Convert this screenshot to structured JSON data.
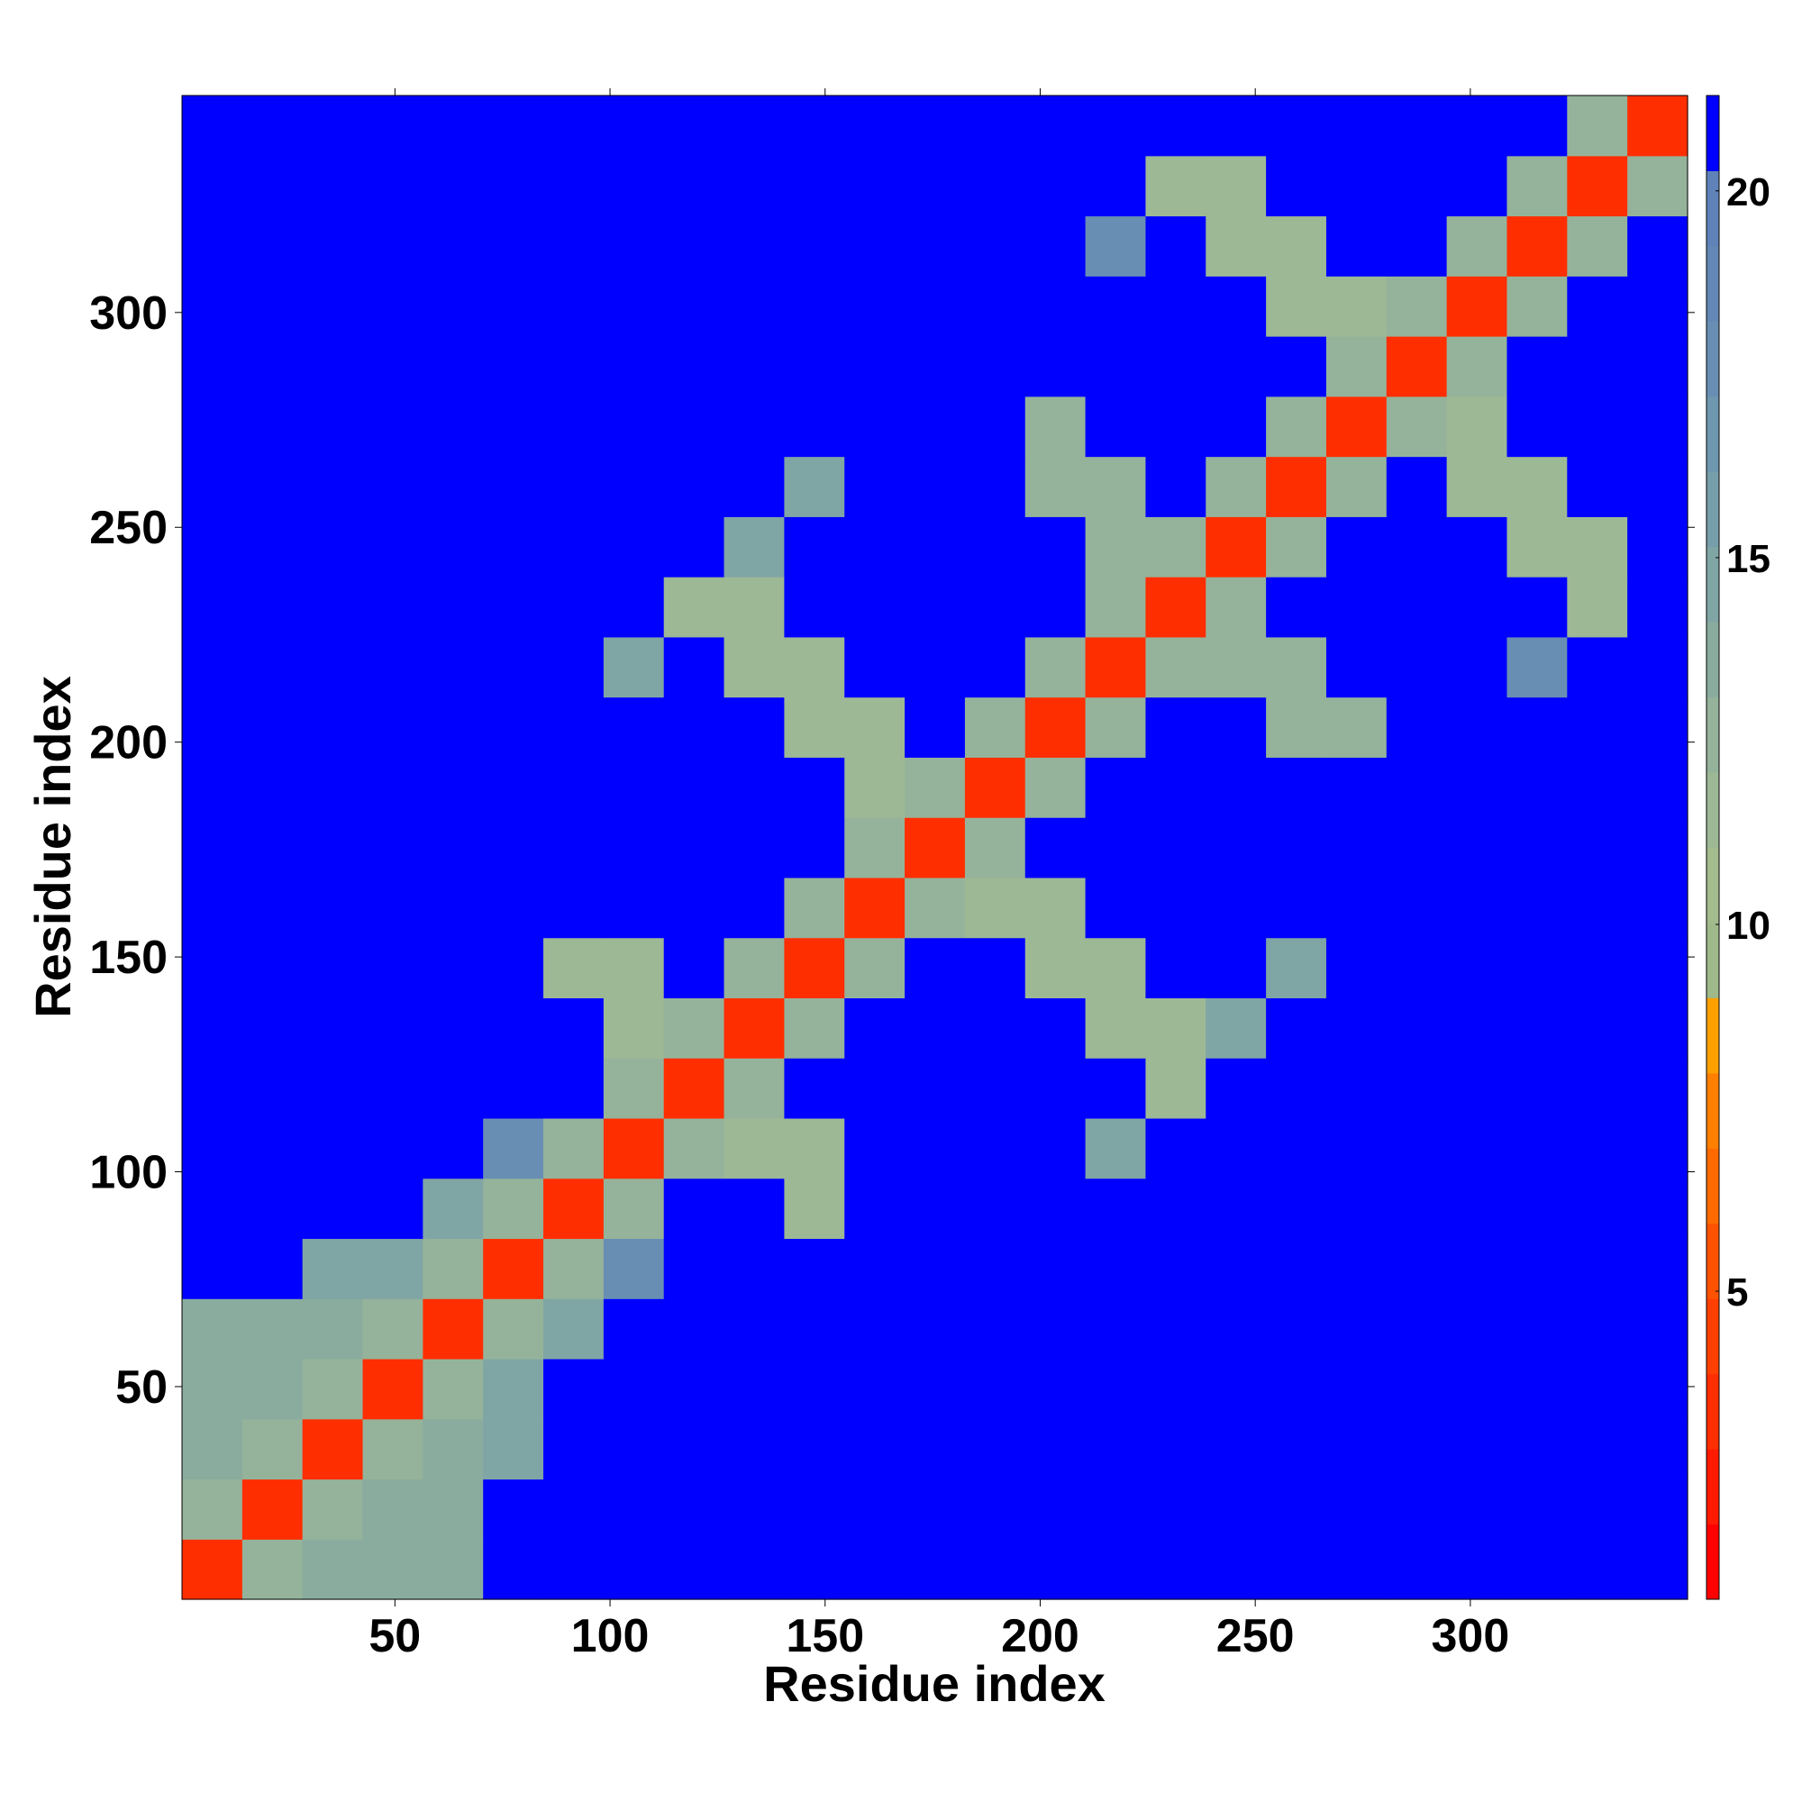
{
  "chart_data": {
    "type": "heatmap",
    "xlabel": "Residue index",
    "ylabel": "Residue index",
    "x": [
      7.5,
      21.5,
      35.5,
      49.5,
      63.5,
      77.5,
      91.5,
      105.5,
      119.5,
      133.5,
      147.5,
      161.5,
      175.5,
      189.5,
      203.5,
      217.5,
      231.5,
      245.5,
      259.5,
      273.5,
      287.5,
      301.5,
      315.5,
      329.5,
      343.5
    ],
    "y": [
      7.5,
      21.5,
      35.5,
      49.5,
      63.5,
      77.5,
      91.5,
      105.5,
      119.5,
      133.5,
      147.5,
      161.5,
      175.5,
      189.5,
      203.5,
      217.5,
      231.5,
      245.5,
      259.5,
      273.5,
      287.5,
      301.5,
      315.5,
      329.5,
      343.5
    ],
    "values": [
      [
        3,
        13,
        14,
        14,
        14,
        21,
        21,
        21,
        21,
        21,
        21,
        21,
        21,
        21,
        21,
        21,
        21,
        21,
        21,
        21,
        21,
        21,
        21,
        21,
        21
      ],
      [
        13,
        3,
        13,
        14,
        14,
        21,
        21,
        21,
        21,
        21,
        21,
        21,
        21,
        21,
        21,
        21,
        21,
        21,
        21,
        21,
        21,
        21,
        21,
        21,
        21
      ],
      [
        14,
        13,
        3,
        13,
        14,
        15,
        21,
        21,
        21,
        21,
        21,
        21,
        21,
        21,
        21,
        21,
        21,
        21,
        21,
        21,
        21,
        21,
        21,
        21,
        21
      ],
      [
        14,
        14,
        13,
        3,
        13,
        15,
        21,
        21,
        21,
        21,
        21,
        21,
        21,
        21,
        21,
        21,
        21,
        21,
        21,
        21,
        21,
        21,
        21,
        21,
        21
      ],
      [
        14,
        14,
        14,
        13,
        3,
        13,
        15,
        21,
        21,
        21,
        21,
        21,
        21,
        21,
        21,
        21,
        21,
        21,
        21,
        21,
        21,
        21,
        21,
        21,
        21
      ],
      [
        21,
        21,
        15,
        15,
        13,
        3,
        13,
        18,
        21,
        21,
        21,
        21,
        21,
        21,
        21,
        21,
        21,
        21,
        21,
        21,
        21,
        21,
        21,
        21,
        21
      ],
      [
        21,
        21,
        21,
        21,
        15,
        13,
        3,
        13,
        21,
        21,
        12,
        21,
        21,
        21,
        21,
        21,
        21,
        21,
        21,
        21,
        21,
        21,
        21,
        21,
        21
      ],
      [
        21,
        21,
        21,
        21,
        21,
        18,
        13,
        3,
        13,
        12,
        12,
        21,
        21,
        21,
        21,
        15,
        21,
        21,
        21,
        21,
        21,
        21,
        21,
        21,
        21
      ],
      [
        21,
        21,
        21,
        21,
        21,
        21,
        21,
        13,
        3,
        13,
        21,
        21,
        21,
        21,
        21,
        21,
        12,
        21,
        21,
        21,
        21,
        21,
        21,
        21,
        21
      ],
      [
        21,
        21,
        21,
        21,
        21,
        21,
        21,
        12,
        13,
        3,
        13,
        21,
        21,
        21,
        21,
        12,
        12,
        15,
        21,
        21,
        21,
        21,
        21,
        21,
        21
      ],
      [
        21,
        21,
        21,
        21,
        21,
        21,
        12,
        12,
        21,
        13,
        3,
        13,
        21,
        21,
        12,
        12,
        21,
        21,
        15,
        21,
        21,
        21,
        21,
        21,
        21
      ],
      [
        21,
        21,
        21,
        21,
        21,
        21,
        21,
        21,
        21,
        21,
        13,
        3,
        13,
        12,
        12,
        21,
        21,
        21,
        21,
        21,
        21,
        21,
        21,
        21,
        21
      ],
      [
        21,
        21,
        21,
        21,
        21,
        21,
        21,
        21,
        21,
        21,
        21,
        13,
        3,
        13,
        21,
        21,
        21,
        21,
        21,
        21,
        21,
        21,
        21,
        21,
        21
      ],
      [
        21,
        21,
        21,
        21,
        21,
        21,
        21,
        21,
        21,
        21,
        21,
        12,
        13,
        3,
        13,
        21,
        21,
        21,
        21,
        21,
        21,
        21,
        21,
        21,
        21
      ],
      [
        21,
        21,
        21,
        21,
        21,
        21,
        21,
        21,
        21,
        21,
        12,
        12,
        21,
        13,
        3,
        13,
        21,
        21,
        13,
        13,
        21,
        21,
        21,
        21,
        21
      ],
      [
        21,
        21,
        21,
        21,
        21,
        21,
        21,
        15,
        21,
        12,
        12,
        21,
        21,
        21,
        13,
        3,
        13,
        13,
        13,
        21,
        21,
        21,
        18,
        21,
        21
      ],
      [
        21,
        21,
        21,
        21,
        21,
        21,
        21,
        21,
        12,
        12,
        21,
        21,
        21,
        21,
        21,
        13,
        3,
        13,
        21,
        21,
        21,
        21,
        21,
        12,
        21
      ],
      [
        21,
        21,
        21,
        21,
        21,
        21,
        21,
        21,
        21,
        15,
        21,
        21,
        21,
        21,
        21,
        13,
        13,
        3,
        13,
        21,
        21,
        21,
        12,
        12,
        21
      ],
      [
        21,
        21,
        21,
        21,
        21,
        21,
        21,
        21,
        21,
        21,
        15,
        21,
        21,
        21,
        13,
        13,
        21,
        13,
        3,
        13,
        21,
        12,
        12,
        21,
        21
      ],
      [
        21,
        21,
        21,
        21,
        21,
        21,
        21,
        21,
        21,
        21,
        21,
        21,
        21,
        21,
        13,
        21,
        21,
        21,
        13,
        3,
        13,
        12,
        21,
        21,
        21
      ],
      [
        21,
        21,
        21,
        21,
        21,
        21,
        21,
        21,
        21,
        21,
        21,
        21,
        21,
        21,
        21,
        21,
        21,
        21,
        21,
        13,
        3,
        13,
        21,
        21,
        21
      ],
      [
        21,
        21,
        21,
        21,
        21,
        21,
        21,
        21,
        21,
        21,
        21,
        21,
        21,
        21,
        21,
        21,
        21,
        21,
        12,
        12,
        13,
        3,
        13,
        21,
        21
      ],
      [
        21,
        21,
        21,
        21,
        21,
        21,
        21,
        21,
        21,
        21,
        21,
        21,
        21,
        21,
        21,
        18,
        21,
        12,
        12,
        21,
        21,
        13,
        3,
        13,
        21
      ],
      [
        21,
        21,
        21,
        21,
        21,
        21,
        21,
        21,
        21,
        21,
        21,
        21,
        21,
        21,
        21,
        21,
        12,
        12,
        21,
        21,
        21,
        21,
        13,
        3,
        13
      ],
      [
        21,
        21,
        21,
        21,
        21,
        21,
        21,
        21,
        21,
        21,
        21,
        21,
        21,
        21,
        21,
        21,
        21,
        21,
        21,
        21,
        21,
        21,
        21,
        13,
        3
      ]
    ],
    "xlim": [
      0.5,
      350.5
    ],
    "ylim": [
      0.5,
      350.5
    ],
    "xticks": [
      50,
      100,
      150,
      200,
      250,
      300
    ],
    "yticks": [
      50,
      100,
      150,
      200,
      250,
      300
    ],
    "clim": [
      0.8,
      21.3
    ],
    "cticks": [
      5,
      10,
      15,
      20
    ],
    "colors": [
      "#ff0000",
      "#ff1a00",
      "#ff2e00",
      "#ff4000",
      "#ff5200",
      "#ff6a00",
      "#ff8000",
      "#ffa000",
      "#9fb98a",
      "#a3bb8d",
      "#9db895",
      "#95b39a",
      "#8aac9f",
      "#80a5a5",
      "#779eab",
      "#6e97b0",
      "#688fb3",
      "#6388b5",
      "#5f83b8",
      "#0000ff"
    ]
  }
}
